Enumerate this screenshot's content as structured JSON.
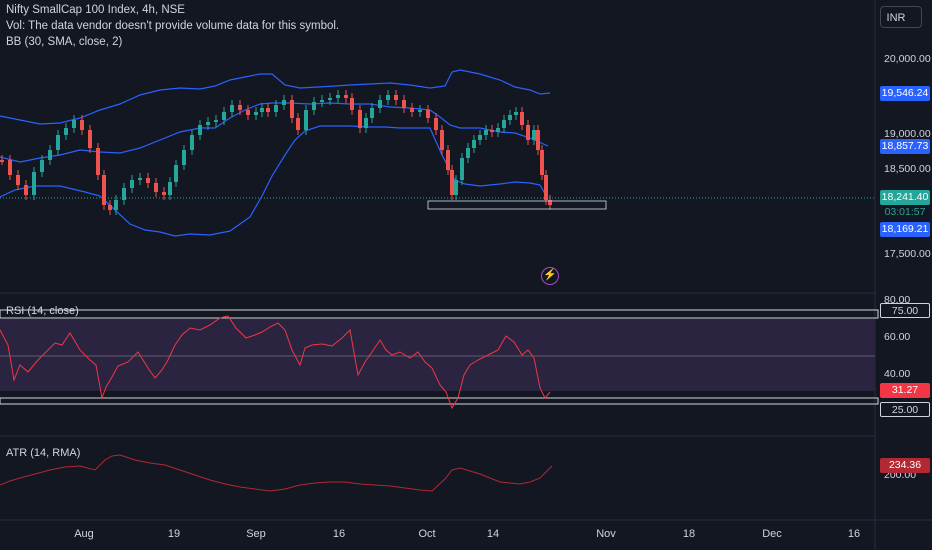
{
  "header": {
    "symbol_line": "Nifty SmallCap 100 Index, 4h, NSE",
    "vol_line": "Vol: The data vendor doesn't provide volume data for this symbol.",
    "bb_line": "BB (30, SMA, close, 2)"
  },
  "currency": "INR",
  "price_axis": {
    "ticks": [
      "20,000.00",
      "19,000.00",
      "18,500.00",
      "17,500.00"
    ],
    "tags": {
      "bb_upper": "19,546.24",
      "bb_basis": "18,857.73",
      "last_price": "18,241.40",
      "countdown": "03:01:57",
      "bb_lower": "18,169.21"
    }
  },
  "rsi_pane": {
    "label": "RSI (14, close)",
    "ticks": [
      "80.00",
      "60.00",
      "40.00"
    ],
    "tags": {
      "upper": "75.00",
      "value": "31.27",
      "lower": "25.00"
    }
  },
  "atr_pane": {
    "label": "ATR (14, RMA)",
    "ticks": [
      "200.00"
    ],
    "tags": {
      "value": "234.36"
    }
  },
  "time_axis": [
    "Aug",
    "19",
    "Sep",
    "16",
    "Oct",
    "14",
    "Nov",
    "18",
    "Dec",
    "16"
  ],
  "colors": {
    "background": "#131722",
    "up": "#26a69a",
    "down": "#ef5350",
    "bb": "#2962ff",
    "rsi": "#f23645",
    "atr": "#b22833",
    "rsi_band": "#2a2440"
  },
  "icons": {
    "flash": "lightning-icon"
  }
}
